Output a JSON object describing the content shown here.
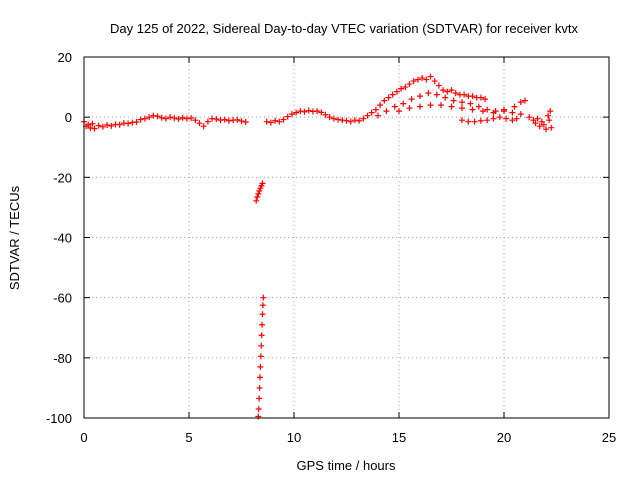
{
  "chart_data": {
    "type": "scatter",
    "title": "Day 125 of 2022, Sidereal Day-to-day VTEC variation (SDTVAR) for receiver kvtx",
    "xlabel": "GPS time / hours",
    "ylabel": "SDTVAR / TECUs",
    "xlim": [
      0,
      25
    ],
    "ylim": [
      -100,
      20
    ],
    "x_ticks": [
      0,
      5,
      10,
      15,
      20,
      25
    ],
    "y_ticks": [
      -100,
      -80,
      -60,
      -40,
      -20,
      0,
      20
    ],
    "grid": true,
    "marker": "+",
    "colors": {
      "series": "#ff0000",
      "grid": "#a0a0a0",
      "axes": "#000000"
    },
    "series": [
      {
        "values": [
          [
            0.0,
            -1.5
          ],
          [
            0.1,
            -3.0
          ],
          [
            0.2,
            -2.5
          ],
          [
            0.3,
            -3.6
          ],
          [
            0.4,
            -2.2
          ],
          [
            0.5,
            -3.8
          ],
          [
            0.7,
            -2.8
          ],
          [
            0.9,
            -3.2
          ],
          [
            1.1,
            -2.6
          ],
          [
            1.3,
            -2.9
          ],
          [
            1.5,
            -2.4
          ],
          [
            1.7,
            -2.5
          ],
          [
            1.9,
            -2.0
          ],
          [
            2.1,
            -2.1
          ],
          [
            2.3,
            -1.8
          ],
          [
            2.5,
            -1.6
          ],
          [
            2.7,
            -0.8
          ],
          [
            2.9,
            -0.5
          ],
          [
            3.1,
            0.0
          ],
          [
            3.3,
            0.5
          ],
          [
            3.5,
            0.3
          ],
          [
            3.7,
            -0.2
          ],
          [
            3.9,
            -0.5
          ],
          [
            4.1,
            0.0
          ],
          [
            4.3,
            -0.3
          ],
          [
            4.5,
            -0.6
          ],
          [
            4.7,
            -0.2
          ],
          [
            4.9,
            -0.5
          ],
          [
            5.1,
            -0.3
          ],
          [
            5.3,
            -1.0
          ],
          [
            5.5,
            -2.0
          ],
          [
            5.7,
            -3.0
          ],
          [
            5.9,
            -1.5
          ],
          [
            6.1,
            -0.5
          ],
          [
            6.3,
            -0.6
          ],
          [
            6.5,
            -1.0
          ],
          [
            6.7,
            -0.8
          ],
          [
            6.9,
            -1.2
          ],
          [
            7.1,
            -1.0
          ],
          [
            7.3,
            -0.9
          ],
          [
            7.5,
            -1.3
          ],
          [
            7.7,
            -1.6
          ],
          [
            8.2,
            -27.8
          ],
          [
            8.25,
            -26.5
          ],
          [
            8.3,
            -25.5
          ],
          [
            8.35,
            -24.5
          ],
          [
            8.4,
            -23.6
          ],
          [
            8.45,
            -22.8
          ],
          [
            8.5,
            -22.0
          ],
          [
            8.3,
            -99.5
          ],
          [
            8.32,
            -97.0
          ],
          [
            8.34,
            -93.5
          ],
          [
            8.36,
            -90.0
          ],
          [
            8.38,
            -86.5
          ],
          [
            8.4,
            -83.0
          ],
          [
            8.42,
            -79.5
          ],
          [
            8.44,
            -76.0
          ],
          [
            8.46,
            -72.5
          ],
          [
            8.48,
            -69.0
          ],
          [
            8.5,
            -65.5
          ],
          [
            8.52,
            -62.5
          ],
          [
            8.54,
            -60.0
          ],
          [
            8.7,
            -1.5
          ],
          [
            8.9,
            -1.8
          ],
          [
            9.1,
            -1.2
          ],
          [
            9.3,
            -1.5
          ],
          [
            9.5,
            -0.8
          ],
          [
            9.7,
            0.2
          ],
          [
            9.9,
            1.0
          ],
          [
            10.1,
            1.5
          ],
          [
            10.3,
            2.0
          ],
          [
            10.5,
            1.8
          ],
          [
            10.7,
            2.2
          ],
          [
            10.9,
            1.9
          ],
          [
            11.1,
            2.0
          ],
          [
            11.3,
            1.6
          ],
          [
            11.5,
            0.8
          ],
          [
            11.7,
            0.0
          ],
          [
            11.9,
            -0.5
          ],
          [
            12.1,
            -0.8
          ],
          [
            12.3,
            -1.0
          ],
          [
            12.5,
            -1.2
          ],
          [
            12.7,
            -1.5
          ],
          [
            12.9,
            -1.0
          ],
          [
            13.1,
            -1.2
          ],
          [
            13.3,
            -0.5
          ],
          [
            13.5,
            0.5
          ],
          [
            13.7,
            1.5
          ],
          [
            13.9,
            2.5
          ],
          [
            14.1,
            4.0
          ],
          [
            14.3,
            5.5
          ],
          [
            14.5,
            6.5
          ],
          [
            14.7,
            7.5
          ],
          [
            14.9,
            8.5
          ],
          [
            15.1,
            9.5
          ],
          [
            15.3,
            10.0
          ],
          [
            15.5,
            11.0
          ],
          [
            15.7,
            12.0
          ],
          [
            15.9,
            12.5
          ],
          [
            16.1,
            13.0
          ],
          [
            16.3,
            12.5
          ],
          [
            16.5,
            13.5
          ],
          [
            16.7,
            12.0
          ],
          [
            16.9,
            10.5
          ],
          [
            17.1,
            9.0
          ],
          [
            17.3,
            8.5
          ],
          [
            17.5,
            9.0
          ],
          [
            17.7,
            8.0
          ],
          [
            17.9,
            7.5
          ],
          [
            18.1,
            7.5
          ],
          [
            18.3,
            7.0
          ],
          [
            18.5,
            7.0
          ],
          [
            18.7,
            6.5
          ],
          [
            18.9,
            6.5
          ],
          [
            19.1,
            6.0
          ],
          [
            14.0,
            0.5
          ],
          [
            14.4,
            2.0
          ],
          [
            14.8,
            3.5
          ],
          [
            15.2,
            4.5
          ],
          [
            15.6,
            6.0
          ],
          [
            16.0,
            7.0
          ],
          [
            16.4,
            8.0
          ],
          [
            16.8,
            7.5
          ],
          [
            17.2,
            6.5
          ],
          [
            17.6,
            5.5
          ],
          [
            18.0,
            5.0
          ],
          [
            18.4,
            4.5
          ],
          [
            18.8,
            3.5
          ],
          [
            19.2,
            2.5
          ],
          [
            19.6,
            2.0
          ],
          [
            20.0,
            2.0
          ],
          [
            20.4,
            1.5
          ],
          [
            20.8,
            1.0
          ],
          [
            15.0,
            2.0
          ],
          [
            15.5,
            3.0
          ],
          [
            16.0,
            3.5
          ],
          [
            16.5,
            4.0
          ],
          [
            17.0,
            4.0
          ],
          [
            17.5,
            3.5
          ],
          [
            18.0,
            3.0
          ],
          [
            18.5,
            2.5
          ],
          [
            19.0,
            2.0
          ],
          [
            19.5,
            1.5
          ],
          [
            20.0,
            2.5
          ],
          [
            20.5,
            3.5
          ],
          [
            20.8,
            5.0
          ],
          [
            21.0,
            5.5
          ],
          [
            18.0,
            -1.0
          ],
          [
            18.3,
            -1.5
          ],
          [
            18.6,
            -1.5
          ],
          [
            18.9,
            -1.2
          ],
          [
            19.2,
            -1.0
          ],
          [
            19.5,
            -0.5
          ],
          [
            19.8,
            0.0
          ],
          [
            20.1,
            -0.5
          ],
          [
            20.4,
            -1.0
          ],
          [
            20.6,
            -0.5
          ],
          [
            21.2,
            0.0
          ],
          [
            21.4,
            -1.0
          ],
          [
            21.5,
            -2.0
          ],
          [
            21.6,
            -0.5
          ],
          [
            21.7,
            -3.0
          ],
          [
            21.8,
            -1.5
          ],
          [
            21.9,
            -2.5
          ],
          [
            22.0,
            -4.0
          ],
          [
            22.1,
            0.5
          ],
          [
            22.15,
            -1.0
          ],
          [
            22.2,
            2.0
          ],
          [
            22.25,
            -3.5
          ]
        ]
      }
    ]
  }
}
